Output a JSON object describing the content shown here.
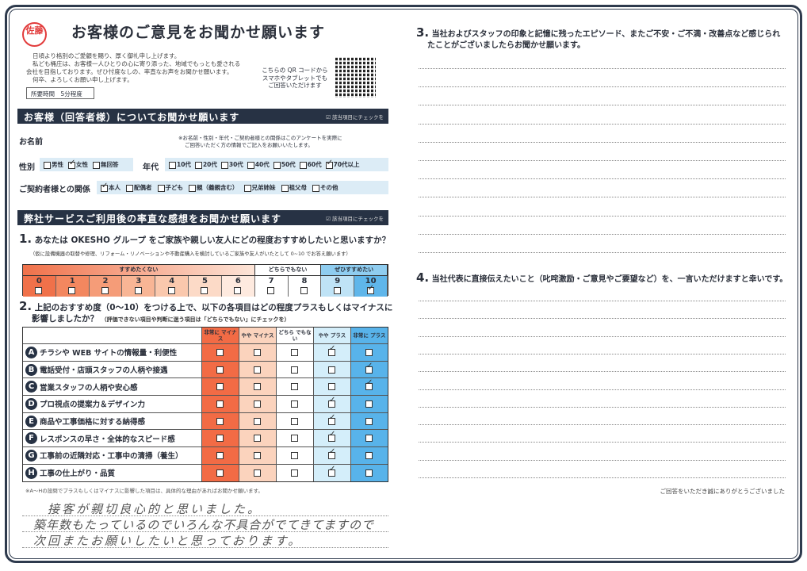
{
  "header": {
    "title": "お客様のご意見をお聞かせ願います",
    "stamp": "佐藤",
    "intro": [
      "日頃より格別のご愛顧を賜り、厚く御礼申し上げます。",
      "私ども桶庄は、お客様一人ひとりの心に寄り添った、地域でもっとも愛される",
      "会社を目指しております。ぜひ忖度なしの、率直なお声をお聞かせ願います。",
      "何卒、よろしくお願い申し上げます。"
    ],
    "time_required": "所要時間　5分程度",
    "qr_text": [
      "こちらの QR コードから",
      "スマホやタブレットでも",
      "ご回答いただけます"
    ]
  },
  "section1": {
    "title": "お客様（回答者様）についてお聞かせ願います",
    "check_hint": "該当項目にチェックを",
    "name_label": "お名前",
    "name_note": [
      "※お名前・性別・年代・ご契約者様との関係はこのアンケートを実際に",
      "ご回答いただく方の情報でご記入をお願いいたします。"
    ],
    "gender_label": "性別",
    "gender": [
      {
        "label": "男性",
        "checked": false
      },
      {
        "label": "女性",
        "checked": true
      },
      {
        "label": "無回答",
        "checked": false
      }
    ],
    "age_label": "年代",
    "ages": [
      {
        "label": "10代",
        "checked": false
      },
      {
        "label": "20代",
        "checked": false
      },
      {
        "label": "30代",
        "checked": false
      },
      {
        "label": "40代",
        "checked": false
      },
      {
        "label": "50代",
        "checked": false
      },
      {
        "label": "60代",
        "checked": false
      },
      {
        "label": "70代以上",
        "checked": true
      }
    ],
    "relation_label": "ご契約者様との関係",
    "relations": [
      {
        "label": "本人",
        "checked": true
      },
      {
        "label": "配偶者",
        "checked": false
      },
      {
        "label": "子ども",
        "checked": false
      },
      {
        "label": "親（義親含む）",
        "checked": false
      },
      {
        "label": "兄弟姉妹",
        "checked": false
      },
      {
        "label": "祖父母",
        "checked": false
      },
      {
        "label": "その他",
        "checked": false
      }
    ]
  },
  "section2": {
    "title": "弊社サービスご利用後の率直な感想をお聞かせ願います",
    "check_hint": "該当項目にチェックを",
    "q1": {
      "num": "1.",
      "text": "あなたは OKESHO グループ をご家族や親しい友人にどの程度おすすめしたいと思いますか？",
      "sub": "（仮に設備機器の取替や修理、リフォーム・リノベーションや不動産購入を検討しているご家族や友人がいたとして 0~10 でお答え願います）",
      "groups": [
        "すすめたくない",
        "どちらでもない",
        "ぜひすすめたい"
      ],
      "scale": [
        "0",
        "1",
        "2",
        "3",
        "4",
        "5",
        "6",
        "7",
        "8",
        "9",
        "10"
      ],
      "selected": 10,
      "colors": [
        "#f0714a",
        "#f3875f",
        "#f59c78",
        "#f8b595",
        "#fac8ad",
        "#fcdac7",
        "#feeadf",
        "#ffffff",
        "#ffffff",
        "#bfe3f6",
        "#5fb6ea"
      ]
    },
    "q2": {
      "num": "2.",
      "text": "上記のおすすめ度（0～10）をつける上で、以下の各項目はどの程度プラスもしくはマイナスに",
      "text2": "影響しましたか？",
      "sub": "（評価できない項目や判断に迷う項目は「どちらでもない」にチェックを）",
      "columns": [
        "非常に マイナス",
        "やや マイナス",
        "どちら でもない",
        "やや プラス",
        "非常に プラス"
      ],
      "column_colors": [
        "#f26b45",
        "#fbd3bd",
        "#ffffff",
        "#d4eefa",
        "#58b3ea"
      ],
      "rows": [
        {
          "letter": "A",
          "label": "チラシや WEB サイトの情報量・利便性",
          "answer": 3
        },
        {
          "letter": "B",
          "label": "電話受付・店頭スタッフの人柄や接遇",
          "answer": 4
        },
        {
          "letter": "C",
          "label": "営業スタッフの人柄や安心感",
          "answer": 4
        },
        {
          "letter": "D",
          "label": "プロ視点の提案力＆デザイン力",
          "answer": 3
        },
        {
          "letter": "E",
          "label": "商品や工事価格に対する納得感",
          "answer": 3
        },
        {
          "letter": "F",
          "label": "レスポンスの早さ・全体的なスピード感",
          "answer": 3
        },
        {
          "letter": "G",
          "label": "工事前の近隣対応・工事中の清掃（養生）",
          "answer": 3
        },
        {
          "letter": "H",
          "label": "工事の仕上がり・品質",
          "answer": 3
        }
      ],
      "note": "※A～Hの設問でプラスもしくはマイナスに影響した項目は、具体的な理由があればお聞かせ願います。",
      "handwritten": [
        "接客が親切良心的と思いました。",
        "築年数もたっているのでいろんな不具合がでてきてますので",
        "次回またお願いしたいと思っております。"
      ]
    },
    "q3": {
      "num": "3.",
      "text": "当社およびスタッフの印象と記憶に残ったエピソード、またご不安・ご不満・改善点など感じられ",
      "text2": "たことがございましたらお聞かせ願います。"
    },
    "q4": {
      "num": "4.",
      "text": "当社代表に直接伝えたいこと（叱咤激励・ご意見やご要望など）を、一言いただけますと幸いです。"
    },
    "thanks": "ご回答をいただき誠にありがとうございました"
  }
}
